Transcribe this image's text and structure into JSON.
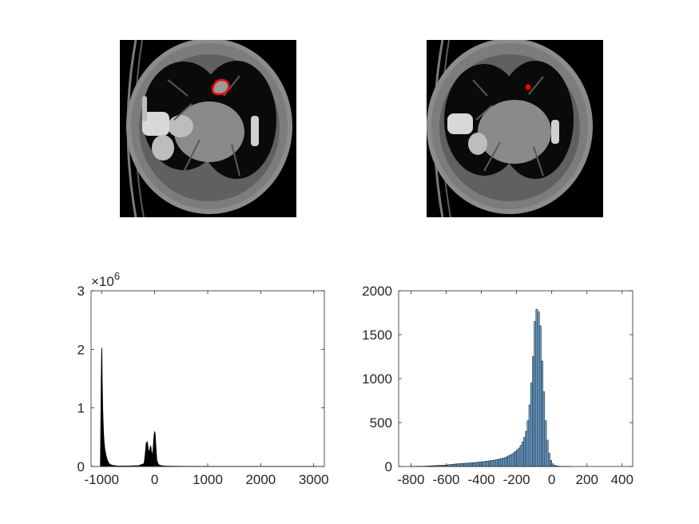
{
  "figure": {
    "background": "#ffffff"
  },
  "chart_data": [
    {
      "type": "image",
      "panel": "top-left",
      "content": "CT axial slice with red tumor contour",
      "overlay_color": "#ff0000"
    },
    {
      "type": "image",
      "panel": "top-right",
      "content": "CT axial slice with small red lesion marker",
      "overlay_color": "#ff0000"
    },
    {
      "type": "area",
      "panel": "bottom-left",
      "title": "",
      "xlabel": "",
      "ylabel": "",
      "exponent_label": "×10",
      "exponent_power": "6",
      "xlim": [
        -1200,
        3200
      ],
      "ylim": [
        0,
        3
      ],
      "xticks": [
        -1000,
        0,
        1000,
        2000,
        3000
      ],
      "yticks": [
        0,
        1,
        2,
        3
      ],
      "xtick_labels": [
        "-1000",
        "0",
        "1000",
        "2000",
        "3000"
      ],
      "ytick_labels": [
        "0",
        "1",
        "2",
        "3"
      ],
      "fill_color": "#000000",
      "x": [
        -1024,
        -1010,
        -1000,
        -995,
        -990,
        -980,
        -970,
        -960,
        -950,
        -940,
        -920,
        -900,
        -880,
        -850,
        -800,
        -700,
        -500,
        -300,
        -200,
        -180,
        -160,
        -140,
        -120,
        -110,
        -100,
        -90,
        -80,
        -70,
        -60,
        -50,
        -40,
        -30,
        -20,
        -10,
        0,
        10,
        20,
        30,
        40,
        60,
        80,
        100,
        150,
        200,
        300,
        500,
        1000,
        1500,
        2000,
        2500,
        3000,
        3071
      ],
      "values": [
        0.02,
        1.4,
        2.03,
        1.95,
        1.5,
        1.0,
        0.7,
        0.5,
        0.38,
        0.3,
        0.2,
        0.13,
        0.08,
        0.04,
        0.02,
        0.01,
        0.008,
        0.015,
        0.05,
        0.2,
        0.4,
        0.42,
        0.3,
        0.25,
        0.26,
        0.3,
        0.35,
        0.33,
        0.25,
        0.2,
        0.22,
        0.3,
        0.45,
        0.55,
        0.6,
        0.55,
        0.4,
        0.25,
        0.12,
        0.05,
        0.03,
        0.02,
        0.012,
        0.008,
        0.005,
        0.003,
        0.002,
        0.001,
        0.001,
        0.001,
        0.001,
        0
      ]
    },
    {
      "type": "bar",
      "panel": "bottom-right",
      "title": "",
      "xlabel": "",
      "ylabel": "",
      "xlim": [
        -870,
        460
      ],
      "ylim": [
        0,
        2000
      ],
      "xticks": [
        -800,
        -600,
        -400,
        -200,
        0,
        200,
        400
      ],
      "yticks": [
        0,
        500,
        1000,
        1500,
        2000
      ],
      "xtick_labels": [
        "-800",
        "-600",
        "-400",
        "-200",
        "0",
        "200",
        "400"
      ],
      "ytick_labels": [
        "0",
        "500",
        "1000",
        "1500",
        "2000"
      ],
      "bar_color": "#6fa8d6",
      "bar_edge": "#000000",
      "bin_edges_start": -800,
      "bin_width": 10,
      "values": [
        2,
        1,
        2,
        3,
        2,
        3,
        3,
        4,
        4,
        5,
        6,
        7,
        8,
        10,
        11,
        12,
        13,
        14,
        15,
        16,
        18,
        20,
        22,
        24,
        26,
        28,
        30,
        31,
        32,
        34,
        36,
        37,
        38,
        40,
        41,
        43,
        45,
        47,
        49,
        51,
        53,
        56,
        58,
        61,
        64,
        67,
        70,
        73,
        76,
        80,
        85,
        90,
        95,
        100,
        110,
        120,
        130,
        140,
        155,
        170,
        190,
        210,
        240,
        280,
        330,
        400,
        520,
        700,
        950,
        1250,
        1650,
        1790,
        1760,
        1600,
        1200,
        850,
        520,
        300,
        150,
        70,
        30,
        15,
        8,
        5,
        3,
        2,
        2,
        1,
        1,
        1,
        1,
        0,
        0,
        0,
        0,
        0,
        0,
        0,
        0,
        0,
        0,
        0,
        0,
        0,
        0,
        0,
        0,
        0,
        0,
        0,
        0,
        0,
        0,
        0,
        0,
        0,
        0,
        0,
        0,
        0
      ]
    }
  ]
}
